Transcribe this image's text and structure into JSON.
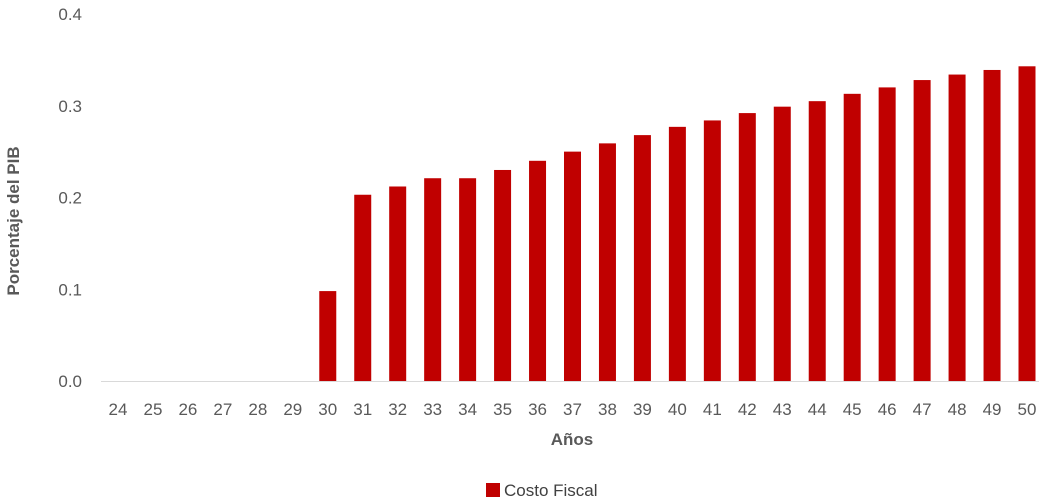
{
  "chart_data": {
    "type": "bar",
    "xlabel": "Años",
    "ylabel": "Porcentaje del PIB",
    "ylim": [
      0,
      0.4
    ],
    "yticks": [
      "0.0",
      "0.1",
      "0.2",
      "0.3",
      "0.4"
    ],
    "grid": false,
    "legend_position": "bottom",
    "categories": [
      "24",
      "25",
      "26",
      "27",
      "28",
      "29",
      "30",
      "31",
      "32",
      "33",
      "34",
      "35",
      "36",
      "37",
      "38",
      "39",
      "40",
      "41",
      "42",
      "43",
      "44",
      "45",
      "46",
      "47",
      "48",
      "49",
      "50"
    ],
    "series": [
      {
        "name": "Costo Fiscal",
        "color": "#c00000",
        "values": [
          0,
          0,
          0,
          0,
          0,
          0,
          0.098,
          0.203,
          0.212,
          0.221,
          0.221,
          0.23,
          0.24,
          0.25,
          0.259,
          0.268,
          0.277,
          0.284,
          0.292,
          0.299,
          0.305,
          0.313,
          0.32,
          0.328,
          0.334,
          0.339,
          0.343
        ]
      }
    ]
  }
}
